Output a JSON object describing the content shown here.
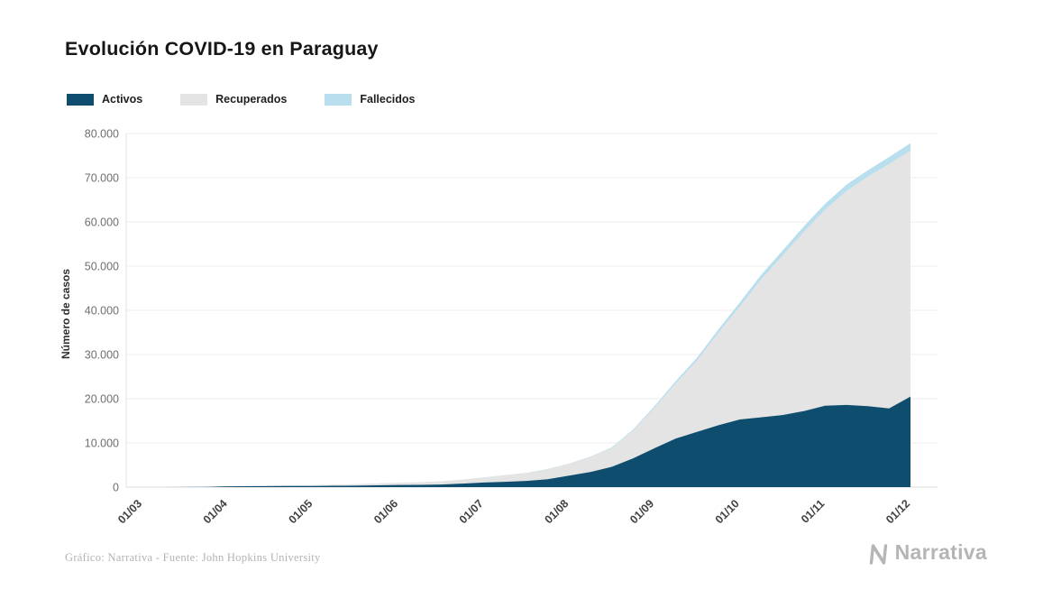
{
  "page": {
    "title": "Evolución COVID-19 en Paraguay",
    "footer_credit": "Gráfico: Narrativa - Fuente: John Hopkins University",
    "brand": "Narrativa"
  },
  "colors": {
    "activos": "#0f4d6e",
    "recuperados": "#e4e4e4",
    "fallecidos": "#b9dfef",
    "grid": "#ececec",
    "axis_text": "#6f6f6f",
    "tick_text": "#414141"
  },
  "chart_data": {
    "type": "area",
    "stacked": true,
    "title": "Evolución COVID-19 en Paraguay",
    "xlabel": "",
    "ylabel": "Número de casos",
    "ylim": [
      0,
      80000
    ],
    "y_ticks": [
      0,
      10000,
      20000,
      30000,
      40000,
      50000,
      60000,
      70000,
      80000
    ],
    "grid": true,
    "legend_position": "top-left",
    "x_unit": "months since 01/03 (dd/mm)",
    "x_tick_labels": [
      "01/03",
      "01/04",
      "01/05",
      "01/06",
      "01/07",
      "01/08",
      "01/09",
      "01/10",
      "01/11",
      "01/12"
    ],
    "x": [
      0,
      0.25,
      0.5,
      0.75,
      1,
      1.25,
      1.5,
      1.75,
      2,
      2.25,
      2.5,
      2.75,
      3,
      3.25,
      3.5,
      3.75,
      4,
      4.25,
      4.5,
      4.75,
      5,
      5.25,
      5.5,
      5.75,
      6,
      6.25,
      6.5,
      6.75,
      7,
      7.25,
      7.5,
      7.75,
      8,
      8.25,
      8.5,
      8.75,
      9
    ],
    "series": [
      {
        "name": "Activos",
        "color": "#0f4d6e",
        "values": [
          1,
          8,
          18,
          55,
          175,
          210,
          230,
          240,
          250,
          300,
          330,
          400,
          480,
          520,
          600,
          800,
          1050,
          1200,
          1400,
          1800,
          2600,
          3400,
          4600,
          6500,
          8800,
          11000,
          12500,
          14000,
          15300,
          15800,
          16300,
          17200,
          18400,
          18600,
          18300,
          17800,
          20500
        ]
      },
      {
        "name": "Recuperados",
        "color": "#e4e4e4",
        "values": [
          0,
          0,
          2,
          7,
          27,
          51,
          90,
          130,
          160,
          249,
          339,
          418,
          467,
          566,
          684,
          882,
          1130,
          1475,
          1770,
          2260,
          2650,
          3410,
          4260,
          6270,
          9150,
          12520,
          16200,
          20950,
          25600,
          31180,
          36080,
          40580,
          44400,
          48420,
          51950,
          55350,
          55650
        ]
      },
      {
        "name": "Fallecidos",
        "color": "#b9dfef",
        "values": [
          0,
          1,
          2,
          3,
          8,
          9,
          10,
          10,
          10,
          11,
          11,
          12,
          13,
          14,
          16,
          18,
          20,
          25,
          30,
          40,
          50,
          90,
          140,
          230,
          350,
          480,
          600,
          750,
          900,
          1020,
          1120,
          1220,
          1300,
          1380,
          1450,
          1550,
          1650
        ]
      }
    ]
  }
}
